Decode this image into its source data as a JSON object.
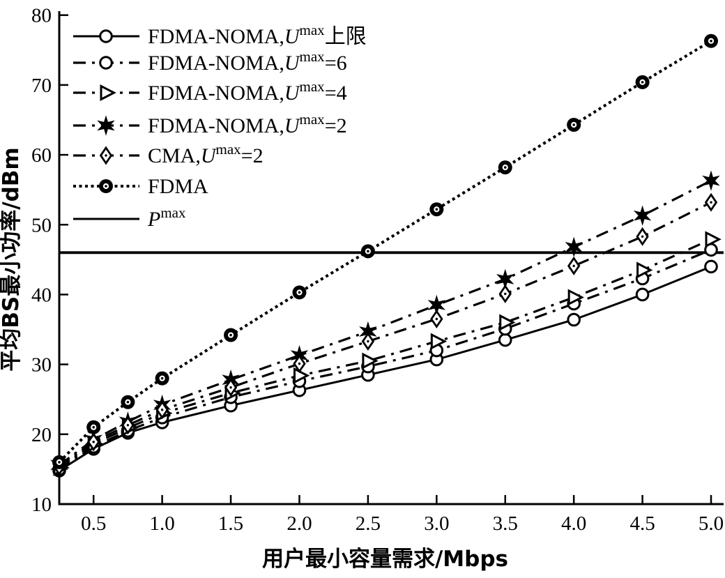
{
  "figure": {
    "x_label": "用户最小容量需求/Mbps",
    "y_label": "平均BS最小功率/dBm",
    "background_color": "#ffffff",
    "ink_color": "#000000"
  },
  "chart_data": {
    "type": "line",
    "xlabel": "用户最小容量需求/Mbps",
    "ylabel": "平均BS最小功率/dBm",
    "xlim": [
      0.25,
      5.0
    ],
    "ylim": [
      10,
      80
    ],
    "x_tick_labels": [
      "0.5",
      "1.0",
      "1.5",
      "2.0",
      "2.5",
      "3.0",
      "3.5",
      "4.0",
      "4.5",
      "5.0"
    ],
    "x_tick_values": [
      0.5,
      1.0,
      1.5,
      2.0,
      2.5,
      3.0,
      3.5,
      4.0,
      4.5,
      5.0
    ],
    "y_tick_labels": [
      "10",
      "20",
      "30",
      "40",
      "50",
      "60",
      "70",
      "80"
    ],
    "y_tick_values": [
      10,
      20,
      30,
      40,
      50,
      60,
      70,
      80
    ],
    "grid": false,
    "legend_position": "top-left",
    "x": [
      0.25,
      0.5,
      0.75,
      1.0,
      1.5,
      2.0,
      2.5,
      3.0,
      3.5,
      4.0,
      4.5,
      5.0
    ],
    "series": [
      {
        "name": "fdma-noma-umax-upper",
        "label": "FDMA-NOMA,Umax上限",
        "label_parts": [
          {
            "t": "FDMA-NOMA,"
          },
          {
            "t": "U",
            "i": true
          },
          {
            "t": "max",
            "sup": true
          },
          {
            "t": "上限"
          }
        ],
        "marker": "open-circle",
        "line": "solid",
        "values": [
          14.8,
          17.9,
          20.2,
          21.7,
          24.1,
          26.3,
          28.5,
          30.7,
          33.5,
          36.4,
          40.0,
          44.0
        ]
      },
      {
        "name": "fdma-noma-umax-6",
        "label": "FDMA-NOMA,Umax=6",
        "label_parts": [
          {
            "t": "FDMA-NOMA,"
          },
          {
            "t": "U",
            "i": true
          },
          {
            "t": "max",
            "sup": true
          },
          {
            "t": "=6"
          }
        ],
        "marker": "open-circle",
        "line": "dashdot",
        "values": [
          15.0,
          18.2,
          20.5,
          22.4,
          25.3,
          27.6,
          29.7,
          32.0,
          35.1,
          38.7,
          42.3,
          46.4
        ]
      },
      {
        "name": "fdma-noma-umax-4",
        "label": "FDMA-NOMA,Umax=4",
        "label_parts": [
          {
            "t": "FDMA-NOMA,"
          },
          {
            "t": "U",
            "i": true
          },
          {
            "t": "max",
            "sup": true
          },
          {
            "t": "=4"
          }
        ],
        "marker": "open-triangle",
        "line": "dashdot",
        "values": [
          15.2,
          18.6,
          20.9,
          23.0,
          25.9,
          28.4,
          30.5,
          33.3,
          36.0,
          39.6,
          43.5,
          47.9
        ]
      },
      {
        "name": "fdma-noma-umax-2",
        "label": "FDMA-NOMA,Umax=2",
        "label_parts": [
          {
            "t": "FDMA-NOMA,"
          },
          {
            "t": "U",
            "i": true
          },
          {
            "t": "max",
            "sup": true
          },
          {
            "t": "=2"
          }
        ],
        "marker": "star",
        "line": "dashdot",
        "values": [
          15.6,
          19.2,
          21.8,
          24.2,
          27.8,
          31.3,
          34.7,
          38.5,
          42.2,
          46.8,
          51.3,
          56.3
        ]
      },
      {
        "name": "cma-umax-2",
        "label": "CMA,Umax=2",
        "label_parts": [
          {
            "t": "CMA,"
          },
          {
            "t": "U",
            "i": true
          },
          {
            "t": "max",
            "sup": true
          },
          {
            "t": "=2"
          }
        ],
        "marker": "open-diamond",
        "line": "dashdot",
        "values": [
          15.4,
          18.9,
          21.3,
          23.5,
          26.7,
          30.1,
          33.3,
          36.5,
          40.1,
          44.1,
          48.3,
          53.2
        ]
      },
      {
        "name": "fdma",
        "label": "FDMA",
        "label_parts": [
          {
            "t": "FDMA"
          }
        ],
        "marker": "bullseye",
        "line": "dotted",
        "values": [
          16.0,
          21.0,
          24.6,
          28.0,
          34.2,
          40.3,
          46.2,
          52.2,
          58.2,
          64.3,
          70.4,
          76.3
        ]
      }
    ],
    "reference_line": {
      "name": "pmax",
      "label": "Pmax",
      "label_parts": [
        {
          "t": "P",
          "i": true
        },
        {
          "t": "max",
          "sup": true
        }
      ],
      "value": 46,
      "line": "solid"
    }
  }
}
